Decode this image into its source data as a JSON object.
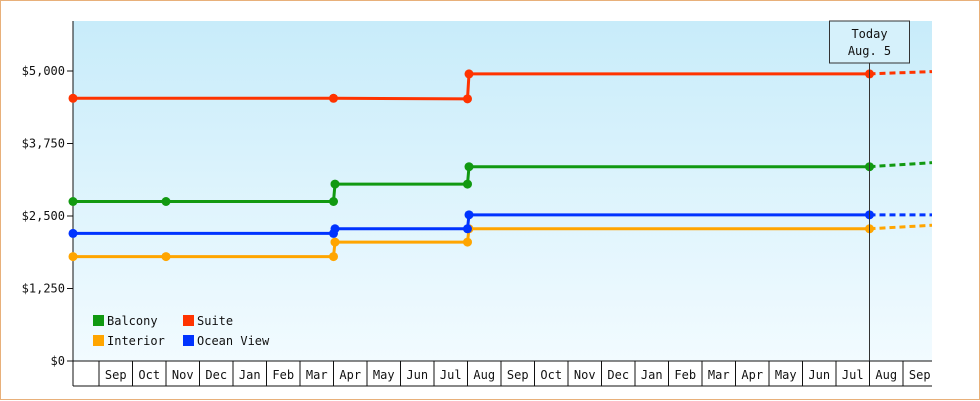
{
  "chart_data": {
    "type": "line",
    "title": "",
    "xlabel": "",
    "ylabel": "",
    "y_ticks": [
      {
        "value": 0,
        "label": "$0"
      },
      {
        "value": 1250,
        "label": "$1,250"
      },
      {
        "value": 2500,
        "label": "$2,500"
      },
      {
        "value": 3750,
        "label": "$3,750"
      },
      {
        "value": 5000,
        "label": "$5,000"
      }
    ],
    "ylim": [
      0,
      5000
    ],
    "x_categories": [
      "Sep",
      "Oct",
      "Nov",
      "Dec",
      "Jan",
      "Feb",
      "Mar",
      "Apr",
      "May",
      "Jun",
      "Jul",
      "Aug",
      "Sep",
      "Oct",
      "Nov",
      "Dec",
      "Jan",
      "Feb",
      "Mar",
      "Apr",
      "May",
      "Jun",
      "Jul",
      "Aug",
      "Sep"
    ],
    "today_marker": {
      "line1": "Today",
      "line2": "Aug. 5"
    },
    "legend_position": "bottom-left",
    "grid": false,
    "series": [
      {
        "name": "Balcony",
        "color": "#119911",
        "points": [
          {
            "month": "Aug",
            "value": 2750
          },
          {
            "month": "Nov",
            "value": 2750
          },
          {
            "month": "Apr",
            "value": 2750
          },
          {
            "month": "Apr",
            "value": 3050
          },
          {
            "month": "Aug",
            "value": 3050
          },
          {
            "month": "Aug",
            "value": 3350
          },
          {
            "month": "Aug",
            "value": 3350
          }
        ],
        "projection_end": 3420
      },
      {
        "name": "Suite",
        "color": "#ff3300",
        "points": [
          {
            "month": "Aug",
            "value": 4530
          },
          {
            "month": "Apr",
            "value": 4530
          },
          {
            "month": "Aug",
            "value": 4520
          },
          {
            "month": "Aug",
            "value": 4950
          },
          {
            "month": "Aug",
            "value": 4950
          }
        ],
        "projection_end": 4990
      },
      {
        "name": "Interior",
        "color": "#ffa500",
        "points": [
          {
            "month": "Aug",
            "value": 1800
          },
          {
            "month": "Nov",
            "value": 1800
          },
          {
            "month": "Apr",
            "value": 1800
          },
          {
            "month": "Apr",
            "value": 2050
          },
          {
            "month": "Aug",
            "value": 2050
          },
          {
            "month": "Aug",
            "value": 2280
          },
          {
            "month": "Aug",
            "value": 2280
          }
        ],
        "projection_end": 2340
      },
      {
        "name": "Ocean View",
        "color": "#0033ff",
        "points": [
          {
            "month": "Aug",
            "value": 2200
          },
          {
            "month": "Apr",
            "value": 2200
          },
          {
            "month": "Apr",
            "value": 2280
          },
          {
            "month": "Aug",
            "value": 2280
          },
          {
            "month": "Aug",
            "value": 2520
          },
          {
            "month": "Aug",
            "value": 2520
          }
        ],
        "projection_end": 2520
      }
    ]
  }
}
